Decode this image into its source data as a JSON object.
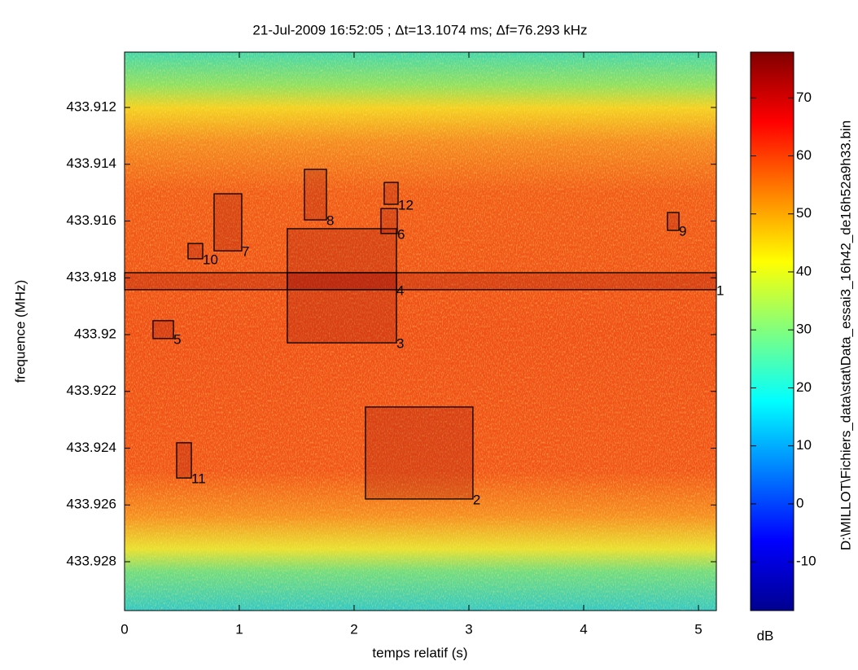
{
  "chart_data": {
    "type": "spectrogram",
    "title": "21-Jul-2009 16:52:05 ; Δt=13.1074 ms; Δf=76.293 kHz",
    "xlabel": "temps relatif (s)",
    "ylabel": "frequence (MHz)",
    "side_label": "D:\\MILLOT\\Fichiers_data\\stat\\Data_essai3_16h42_de16h52a9h33.bin",
    "xlim": [
      0,
      5.156
    ],
    "xticks": [
      0,
      1,
      2,
      3,
      4,
      5
    ],
    "ylim": [
      433.91005,
      433.92972
    ],
    "y_reversed": true,
    "yticks": [
      433.912,
      433.914,
      433.916,
      433.918,
      433.92,
      433.922,
      433.924,
      433.926,
      433.928
    ],
    "colorbar": {
      "label": "dB",
      "clim": [
        -18.4,
        77.9
      ],
      "ticks": [
        -10,
        0,
        10,
        20,
        30,
        40,
        50,
        60,
        70
      ]
    },
    "regions": [
      {
        "label": "1",
        "t": [
          0,
          5.156
        ],
        "f": [
          433.91782,
          433.91842
        ]
      },
      {
        "label": "2",
        "t": [
          2.099,
          3.035
        ],
        "f": [
          433.92255,
          433.92579
        ]
      },
      {
        "label": "3",
        "t": [
          1.418,
          2.369
        ],
        "f": [
          433.91627,
          433.92029
        ]
      },
      {
        "label": "4",
        "t": [
          1.418,
          2.369
        ],
        "f": [
          433.91782,
          433.91842
        ]
      },
      {
        "label": "5",
        "t": [
          0.248,
          0.426
        ],
        "f": [
          433.91951,
          433.92014
        ]
      },
      {
        "label": "6",
        "t": [
          2.234,
          2.376
        ],
        "f": [
          433.91556,
          433.91644
        ]
      },
      {
        "label": "7",
        "t": [
          0.78,
          1.021
        ],
        "f": [
          433.91504,
          433.91705
        ]
      },
      {
        "label": "8",
        "t": [
          1.567,
          1.759
        ],
        "f": [
          433.91418,
          433.91596
        ]
      },
      {
        "label": "9",
        "t": [
          4.73,
          4.83
        ],
        "f": [
          433.9157,
          433.91633
        ]
      },
      {
        "label": "10",
        "t": [
          0.553,
          0.681
        ],
        "f": [
          433.91679,
          433.91733
        ]
      },
      {
        "label": "11",
        "t": [
          0.454,
          0.582
        ],
        "f": [
          433.92381,
          433.92505
        ]
      },
      {
        "label": "12",
        "t": [
          2.262,
          2.383
        ],
        "f": [
          433.91464,
          433.91541
        ]
      }
    ]
  }
}
